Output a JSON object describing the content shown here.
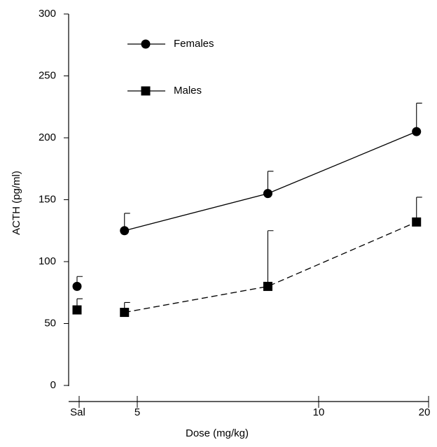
{
  "chart_data": {
    "type": "line",
    "xlabel": "Dose (mg/kg)",
    "ylabel": "ACTH (pg/ml)",
    "x": [
      0,
      3.9,
      8.6,
      18.9
    ],
    "xticks": [
      {
        "value": 0,
        "label": "Sal"
      },
      5,
      10,
      20
    ],
    "ylim": [
      0,
      300
    ],
    "yticks": [
      0,
      50,
      100,
      150,
      200,
      250,
      300
    ],
    "series": [
      {
        "name": "Females",
        "color": "#000000",
        "marker": "circle",
        "dash": false,
        "values": [
          80,
          125,
          155,
          205
        ],
        "errors": [
          8,
          14,
          18,
          23
        ]
      },
      {
        "name": "Males",
        "color": "#000000",
        "marker": "square",
        "dash": true,
        "values": [
          61,
          59,
          80,
          132
        ],
        "errors": [
          9,
          8,
          45,
          20
        ]
      }
    ]
  }
}
